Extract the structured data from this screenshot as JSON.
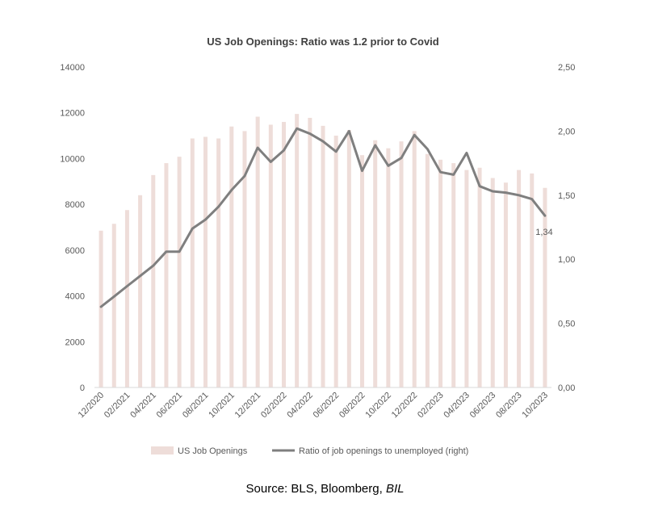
{
  "colors": {
    "bars": "#eeddd9",
    "line": "#7f7f7f",
    "text": "#595959"
  },
  "source": {
    "prefix": "Source: BLS, Bloomberg, ",
    "italic": "BIL"
  },
  "chart_data": {
    "type": "bar",
    "title": "US Job Openings: Ratio was 1.2 prior to Covid",
    "categories": [
      "12/2020",
      "01/2021",
      "02/2021",
      "03/2021",
      "04/2021",
      "05/2021",
      "06/2021",
      "07/2021",
      "08/2021",
      "09/2021",
      "10/2021",
      "11/2021",
      "12/2021",
      "01/2022",
      "02/2022",
      "03/2022",
      "04/2022",
      "05/2022",
      "06/2022",
      "07/2022",
      "08/2022",
      "09/2022",
      "10/2022",
      "11/2022",
      "12/2022",
      "01/2023",
      "02/2023",
      "03/2023",
      "04/2023",
      "05/2023",
      "06/2023",
      "07/2023",
      "08/2023",
      "09/2023",
      "10/2023"
    ],
    "tick_labels": [
      "12/2020",
      "02/2021",
      "04/2021",
      "06/2021",
      "08/2021",
      "10/2021",
      "12/2021",
      "02/2022",
      "04/2022",
      "06/2022",
      "08/2022",
      "10/2022",
      "12/2022",
      "02/2023",
      "04/2023",
      "06/2023",
      "08/2023",
      "10/2023"
    ],
    "series": [
      {
        "name": "US Job Openings",
        "type": "bar",
        "axis": "left",
        "values": [
          6850,
          7150,
          7750,
          8400,
          9280,
          9800,
          10080,
          10880,
          10950,
          10880,
          11400,
          11200,
          11830,
          11480,
          11600,
          11950,
          11780,
          11430,
          11000,
          11250,
          10150,
          10800,
          10450,
          10750,
          11200,
          10200,
          9950,
          9800,
          9500,
          9600,
          9150,
          8950,
          9500,
          9350,
          8720
        ]
      },
      {
        "name": "Ratio of job openings to unemployed (right)",
        "type": "line",
        "axis": "right",
        "values": [
          0.63,
          0.71,
          0.79,
          0.87,
          0.95,
          1.06,
          1.06,
          1.24,
          1.31,
          1.41,
          1.54,
          1.65,
          1.87,
          1.76,
          1.85,
          2.02,
          1.98,
          1.92,
          1.84,
          2.0,
          1.69,
          1.89,
          1.73,
          1.79,
          1.97,
          1.86,
          1.68,
          1.66,
          1.83,
          1.57,
          1.53,
          1.52,
          1.5,
          1.47,
          1.34
        ]
      }
    ],
    "annotation": "1,34",
    "left_axis": {
      "ylim": [
        0,
        14000
      ],
      "ticks": [
        "0",
        "2000",
        "4000",
        "6000",
        "8000",
        "10000",
        "12000",
        "14000"
      ]
    },
    "right_axis": {
      "ylim": [
        0,
        2.5
      ],
      "ticks": [
        "0,00",
        "0,50",
        "1,00",
        "1,50",
        "2,00",
        "2,50"
      ]
    },
    "legend_position": "bottom",
    "grid": false
  }
}
